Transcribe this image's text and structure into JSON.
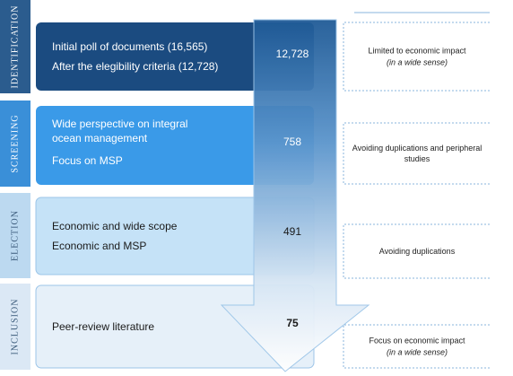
{
  "stages": [
    {
      "label": "IDENTIFICATION",
      "lines": [
        "Initial poll of documents (16,565)",
        "After the elegibility criteria (12,728)"
      ],
      "count": "12,728",
      "note": [
        "Limited to economic impact",
        "(in a wide sense)"
      ]
    },
    {
      "label": "SCREENING",
      "lines": [
        "Wide perspective on integral ocean management",
        "Focus on MSP"
      ],
      "count": "758",
      "note": [
        "Avoiding duplications and peripheral studies"
      ]
    },
    {
      "label": "ELECTION",
      "lines": [
        "Economic and wide scope",
        "Economic and MSP"
      ],
      "count": "491",
      "note": [
        "Avoiding duplications"
      ]
    },
    {
      "label": "INCLUSION",
      "lines": [
        "Peer-review literature"
      ],
      "count": "75",
      "note": [
        "Focus on economic impact",
        "(in a wide sense)"
      ]
    }
  ]
}
